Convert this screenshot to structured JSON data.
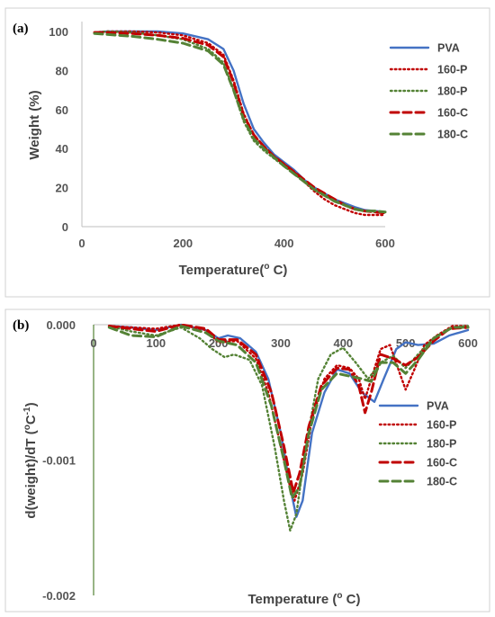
{
  "chart_data": [
    {
      "panel": "(a)",
      "type": "line",
      "xlabel": "Temperature(o C)",
      "xlabel_parts": {
        "before": "Temperature(",
        "sup": "o",
        "after": " C)"
      },
      "ylabel": "Weight (%)",
      "xlim": [
        0,
        600
      ],
      "ylim": [
        0,
        100
      ],
      "xticks": [
        "0",
        "200",
        "400",
        "600"
      ],
      "yticks": [
        "0",
        "20",
        "40",
        "60",
        "80",
        "100"
      ],
      "grid": false,
      "legend_position": "right",
      "series": [
        {
          "name": "PVA",
          "color": "#4472C4",
          "dash": "solid",
          "points": [
            [
              25,
              99.5
            ],
            [
              50,
              100
            ],
            [
              100,
              100
            ],
            [
              150,
              100
            ],
            [
              200,
              99
            ],
            [
              250,
              96
            ],
            [
              280,
              91
            ],
            [
              300,
              80
            ],
            [
              320,
              63
            ],
            [
              340,
              50
            ],
            [
              360,
              43
            ],
            [
              380,
              37
            ],
            [
              400,
              33
            ],
            [
              420,
              29
            ],
            [
              440,
              24
            ],
            [
              460,
              20
            ],
            [
              480,
              17
            ],
            [
              500,
              14
            ],
            [
              520,
              12
            ],
            [
              540,
              10
            ],
            [
              560,
              8.5
            ],
            [
              580,
              8
            ],
            [
              600,
              7.5
            ]
          ]
        },
        {
          "name": "160-P",
          "color": "#C00000",
          "dash": "dotted",
          "points": [
            [
              25,
              99.5
            ],
            [
              50,
              100
            ],
            [
              100,
              100
            ],
            [
              150,
              99.5
            ],
            [
              200,
              98
            ],
            [
              250,
              94
            ],
            [
              280,
              88
            ],
            [
              300,
              75
            ],
            [
              320,
              58
            ],
            [
              340,
              47
            ],
            [
              360,
              41
            ],
            [
              380,
              36
            ],
            [
              400,
              32
            ],
            [
              420,
              28
            ],
            [
              440,
              23
            ],
            [
              460,
              18
            ],
            [
              480,
              14
            ],
            [
              500,
              11
            ],
            [
              520,
              9
            ],
            [
              540,
              7
            ],
            [
              560,
              6
            ],
            [
              580,
              6
            ],
            [
              600,
              6
            ]
          ]
        },
        {
          "name": "180-P",
          "color": "#548235",
          "dash": "dotted",
          "points": [
            [
              25,
              99.5
            ],
            [
              50,
              100
            ],
            [
              100,
              99.5
            ],
            [
              150,
              98
            ],
            [
              200,
              96
            ],
            [
              250,
              91
            ],
            [
              280,
              84
            ],
            [
              300,
              70
            ],
            [
              320,
              54
            ],
            [
              340,
              44
            ],
            [
              360,
              39
            ],
            [
              380,
              35
            ],
            [
              400,
              31
            ],
            [
              420,
              27
            ],
            [
              440,
              23
            ],
            [
              460,
              19
            ],
            [
              480,
              16
            ],
            [
              500,
              13
            ],
            [
              520,
              11
            ],
            [
              540,
              9
            ],
            [
              560,
              8
            ],
            [
              580,
              7.5
            ],
            [
              600,
              7
            ]
          ]
        },
        {
          "name": "160-C",
          "color": "#C00000",
          "dash": "dashed",
          "points": [
            [
              25,
              99.5
            ],
            [
              50,
              99.5
            ],
            [
              100,
              99
            ],
            [
              150,
              98
            ],
            [
              200,
              96.5
            ],
            [
              250,
              93
            ],
            [
              280,
              87
            ],
            [
              300,
              74
            ],
            [
              320,
              57
            ],
            [
              340,
              47
            ],
            [
              360,
              41
            ],
            [
              380,
              36
            ],
            [
              400,
              32
            ],
            [
              420,
              28
            ],
            [
              440,
              24
            ],
            [
              460,
              20
            ],
            [
              480,
              17
            ],
            [
              500,
              14
            ],
            [
              520,
              11
            ],
            [
              540,
              9
            ],
            [
              560,
              8
            ],
            [
              580,
              7.5
            ],
            [
              600,
              7
            ]
          ]
        },
        {
          "name": "180-C",
          "color": "#548235",
          "dash": "dashed",
          "points": [
            [
              25,
              99
            ],
            [
              50,
              98.5
            ],
            [
              100,
              97.5
            ],
            [
              150,
              96
            ],
            [
              200,
              94
            ],
            [
              250,
              90
            ],
            [
              280,
              83
            ],
            [
              300,
              70
            ],
            [
              320,
              55
            ],
            [
              340,
              45
            ],
            [
              360,
              40
            ],
            [
              380,
              35.5
            ],
            [
              400,
              31
            ],
            [
              420,
              27
            ],
            [
              440,
              23
            ],
            [
              460,
              19
            ],
            [
              480,
              16
            ],
            [
              500,
              13
            ],
            [
              520,
              11
            ],
            [
              540,
              9
            ],
            [
              560,
              8
            ],
            [
              580,
              8
            ],
            [
              600,
              7.5
            ]
          ]
        }
      ]
    },
    {
      "panel": "(b)",
      "type": "line",
      "xlabel": "Temperature (o C)",
      "xlabel_parts": {
        "before": "Temperature (",
        "sup": "o",
        "after": " C)"
      },
      "ylabel": "d(weight)/dT (oC-1)",
      "ylabel_parts": {
        "before": "d(weight)/dT (",
        "sup1": "o",
        "mid": "C",
        "sup2": "-1",
        "after": ")"
      },
      "xlim": [
        0,
        600
      ],
      "ylim": [
        -0.002,
        0
      ],
      "xticks": [
        "0",
        "100",
        "200",
        "300",
        "400",
        "500",
        "600"
      ],
      "yticks": [
        "0.000",
        "-0.001",
        "-0.002"
      ],
      "grid": false,
      "legend_position": "right",
      "series": [
        {
          "name": "PVA",
          "color": "#4472C4",
          "dash": "solid",
          "points": [
            [
              25,
              -1e-05
            ],
            [
              60,
              -2e-05
            ],
            [
              100,
              -4e-05
            ],
            [
              140,
              0
            ],
            [
              180,
              -4e-05
            ],
            [
              200,
              -0.0001
            ],
            [
              215,
              -8e-05
            ],
            [
              235,
              -0.0001
            ],
            [
              260,
              -0.0002
            ],
            [
              280,
              -0.0004
            ],
            [
              300,
              -0.0008
            ],
            [
              315,
              -0.0012
            ],
            [
              325,
              -0.00142
            ],
            [
              335,
              -0.0013
            ],
            [
              350,
              -0.0008
            ],
            [
              370,
              -0.0005
            ],
            [
              390,
              -0.00033
            ],
            [
              410,
              -0.00036
            ],
            [
              430,
              -0.0005
            ],
            [
              450,
              -0.00057
            ],
            [
              465,
              -0.0004
            ],
            [
              485,
              -0.00018
            ],
            [
              500,
              -0.00013
            ],
            [
              520,
              -0.00015
            ],
            [
              545,
              -0.00014
            ],
            [
              570,
              -8e-05
            ],
            [
              600,
              -4e-05
            ]
          ]
        },
        {
          "name": "160-P",
          "color": "#C00000",
          "dash": "dotted",
          "points": [
            [
              25,
              -1e-05
            ],
            [
              60,
              -2e-05
            ],
            [
              100,
              -3e-05
            ],
            [
              140,
              0
            ],
            [
              180,
              -4e-05
            ],
            [
              200,
              -0.00013
            ],
            [
              230,
              -0.00012
            ],
            [
              260,
              -0.00025
            ],
            [
              280,
              -0.0005
            ],
            [
              300,
              -0.0009
            ],
            [
              315,
              -0.0012
            ],
            [
              322,
              -0.0013
            ],
            [
              335,
              -0.0011
            ],
            [
              350,
              -0.0007
            ],
            [
              370,
              -0.0004
            ],
            [
              390,
              -0.0003
            ],
            [
              410,
              -0.00032
            ],
            [
              425,
              -0.0004
            ],
            [
              435,
              -0.00055
            ],
            [
              445,
              -0.0004
            ],
            [
              460,
              -0.00018
            ],
            [
              475,
              -0.00015
            ],
            [
              490,
              -0.00035
            ],
            [
              500,
              -0.00048
            ],
            [
              515,
              -0.00032
            ],
            [
              530,
              -0.00015
            ],
            [
              550,
              -8e-05
            ],
            [
              575,
              -1e-05
            ],
            [
              600,
              -1e-05
            ]
          ]
        },
        {
          "name": "180-P",
          "color": "#548235",
          "dash": "dotted",
          "points": [
            [
              25,
              -1e-05
            ],
            [
              60,
              -5e-05
            ],
            [
              100,
              -8e-05
            ],
            [
              140,
              -2e-05
            ],
            [
              170,
              -0.0001
            ],
            [
              190,
              -0.00018
            ],
            [
              210,
              -0.00024
            ],
            [
              225,
              -0.00022
            ],
            [
              250,
              -0.00026
            ],
            [
              270,
              -0.00045
            ],
            [
              290,
              -0.0009
            ],
            [
              305,
              -0.0013
            ],
            [
              315,
              -0.00152
            ],
            [
              325,
              -0.0014
            ],
            [
              340,
              -0.0009
            ],
            [
              360,
              -0.0004
            ],
            [
              380,
              -0.00022
            ],
            [
              400,
              -0.00017
            ],
            [
              420,
              -0.00028
            ],
            [
              440,
              -0.0004
            ],
            [
              460,
              -0.00028
            ],
            [
              480,
              -0.00023
            ],
            [
              500,
              -0.00032
            ],
            [
              520,
              -0.00022
            ],
            [
              545,
              -0.0001
            ],
            [
              575,
              -2e-05
            ],
            [
              600,
              -1e-05
            ]
          ]
        },
        {
          "name": "160-C",
          "color": "#C00000",
          "dash": "dashed",
          "points": [
            [
              25,
              -1e-05
            ],
            [
              60,
              -3e-05
            ],
            [
              100,
              -5e-05
            ],
            [
              140,
              0
            ],
            [
              180,
              -3e-05
            ],
            [
              200,
              -0.00011
            ],
            [
              230,
              -0.00011
            ],
            [
              260,
              -0.00022
            ],
            [
              285,
              -0.0005
            ],
            [
              305,
              -0.0009
            ],
            [
              320,
              -0.00124
            ],
            [
              330,
              -0.0011
            ],
            [
              345,
              -0.00075
            ],
            [
              365,
              -0.00045
            ],
            [
              390,
              -0.00032
            ],
            [
              410,
              -0.00033
            ],
            [
              425,
              -0.00045
            ],
            [
              435,
              -0.00065
            ],
            [
              445,
              -0.0005
            ],
            [
              460,
              -0.00022
            ],
            [
              480,
              -0.00025
            ],
            [
              500,
              -0.0003
            ],
            [
              520,
              -0.00024
            ],
            [
              545,
              -0.00012
            ],
            [
              570,
              -3e-05
            ],
            [
              600,
              -2e-05
            ]
          ]
        },
        {
          "name": "180-C",
          "color": "#548235",
          "dash": "dashed",
          "points": [
            [
              25,
              -2e-05
            ],
            [
              60,
              -8e-05
            ],
            [
              100,
              -9e-05
            ],
            [
              140,
              -1e-05
            ],
            [
              180,
              -6e-05
            ],
            [
              200,
              -0.00012
            ],
            [
              230,
              -0.00015
            ],
            [
              260,
              -0.00028
            ],
            [
              285,
              -0.0006
            ],
            [
              305,
              -0.001
            ],
            [
              318,
              -0.00128
            ],
            [
              330,
              -0.0012
            ],
            [
              345,
              -0.0008
            ],
            [
              365,
              -0.00048
            ],
            [
              390,
              -0.00036
            ],
            [
              410,
              -0.00038
            ],
            [
              430,
              -0.0004
            ],
            [
              445,
              -0.00042
            ],
            [
              460,
              -0.00028
            ],
            [
              480,
              -0.00028
            ],
            [
              500,
              -0.00036
            ],
            [
              520,
              -0.00026
            ],
            [
              545,
              -0.0001
            ],
            [
              575,
              -2e-05
            ],
            [
              600,
              -2e-05
            ]
          ]
        }
      ]
    }
  ]
}
